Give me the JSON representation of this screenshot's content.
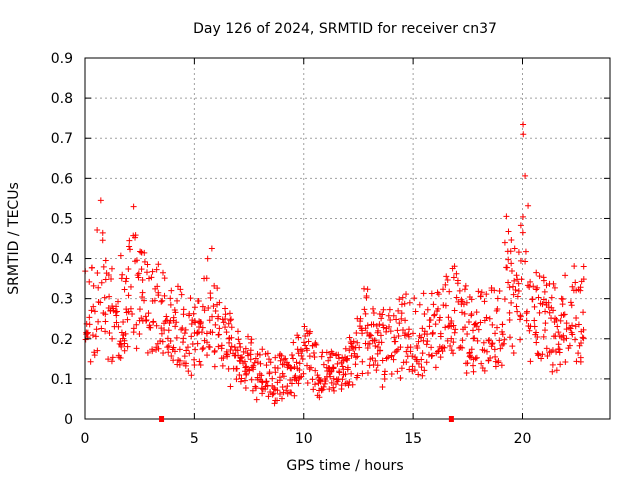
{
  "chart_data": {
    "type": "scatter",
    "title": "Day 126 of 2024, SRMTID for receiver cn37",
    "xlabel": "GPS time / hours",
    "ylabel": "SRMTID / TECUs",
    "xlim": [
      0,
      24
    ],
    "ylim": [
      0,
      0.9
    ],
    "xticks": [
      0,
      5,
      10,
      15,
      20
    ],
    "yticks": [
      0,
      0.1,
      0.2,
      0.3,
      0.4,
      0.5,
      0.6,
      0.7,
      0.8,
      0.9
    ],
    "xtick_labels": [
      "0",
      "5",
      "10",
      "15",
      "20"
    ],
    "ytick_labels": [
      "0",
      "0.1",
      "0.2",
      "0.3",
      "0.4",
      "0.5",
      "0.6",
      "0.7",
      "0.8",
      "0.9"
    ],
    "grid": true,
    "marker": "+",
    "series_color": "#ff0000",
    "points_per_hour": 12,
    "x_start": 0.05,
    "series": [
      {
        "name": "SRMTID",
        "envelope": [
          [
            0.0,
            0.28
          ],
          [
            0.5,
            0.29
          ],
          [
            0.7,
            0.4
          ],
          [
            1.0,
            0.27
          ],
          [
            1.5,
            0.26
          ],
          [
            2.0,
            0.3
          ],
          [
            2.2,
            0.4
          ],
          [
            2.5,
            0.3
          ],
          [
            3.0,
            0.26
          ],
          [
            3.5,
            0.26
          ],
          [
            4.0,
            0.23
          ],
          [
            4.5,
            0.22
          ],
          [
            5.0,
            0.2
          ],
          [
            5.5,
            0.23
          ],
          [
            5.8,
            0.31
          ],
          [
            6.0,
            0.22
          ],
          [
            6.5,
            0.19
          ],
          [
            7.0,
            0.16
          ],
          [
            7.5,
            0.13
          ],
          [
            8.0,
            0.12
          ],
          [
            8.5,
            0.1
          ],
          [
            9.0,
            0.1
          ],
          [
            9.5,
            0.12
          ],
          [
            10.0,
            0.16
          ],
          [
            10.3,
            0.16
          ],
          [
            10.6,
            0.12
          ],
          [
            11.0,
            0.1
          ],
          [
            11.5,
            0.12
          ],
          [
            12.0,
            0.14
          ],
          [
            12.5,
            0.17
          ],
          [
            12.8,
            0.25
          ],
          [
            13.0,
            0.2
          ],
          [
            13.5,
            0.18
          ],
          [
            14.0,
            0.19
          ],
          [
            14.5,
            0.21
          ],
          [
            15.0,
            0.22
          ],
          [
            15.5,
            0.21
          ],
          [
            16.0,
            0.22
          ],
          [
            16.5,
            0.23
          ],
          [
            17.0,
            0.27
          ],
          [
            17.5,
            0.2
          ],
          [
            18.0,
            0.24
          ],
          [
            18.5,
            0.22
          ],
          [
            19.0,
            0.24
          ],
          [
            19.3,
            0.37
          ],
          [
            19.6,
            0.28
          ],
          [
            20.0,
            0.36
          ],
          [
            20.1,
            0.65
          ],
          [
            20.3,
            0.25
          ],
          [
            20.8,
            0.24
          ],
          [
            21.5,
            0.24
          ],
          [
            22.0,
            0.26
          ],
          [
            22.3,
            0.28
          ],
          [
            22.8,
            0.27
          ]
        ]
      }
    ],
    "gap_markers_x": [
      3.5,
      16.75
    ]
  }
}
